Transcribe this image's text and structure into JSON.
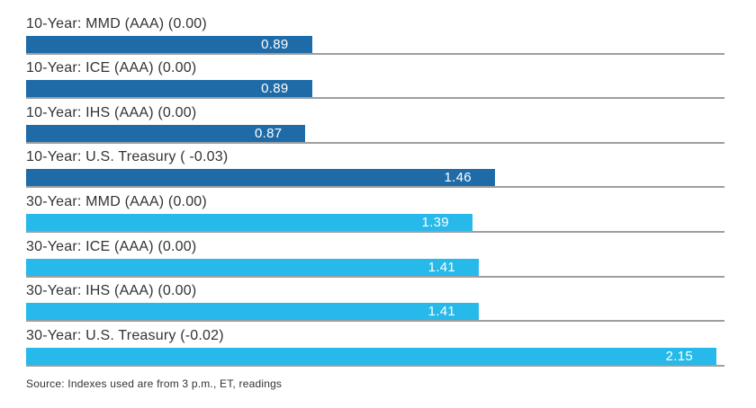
{
  "chart_data": {
    "type": "bar",
    "orientation": "horizontal",
    "title": "",
    "xlabel": "",
    "ylabel": "",
    "xlim": [
      0,
      2.175
    ],
    "grid": "row-separator-lines",
    "legend": "none",
    "value_label_position": "inside-end",
    "categories": [
      "10-Year: MMD (AAA) (0.00)",
      "10-Year: ICE (AAA) (0.00)",
      "10-Year: IHS (AAA) (0.00)",
      "10-Year: U.S. Treasury ( -0.03)",
      "30-Year: MMD (AAA) (0.00)",
      "30-Year: ICE (AAA) (0.00)",
      "30-Year: IHS (AAA) (0.00)",
      "30-Year: U.S. Treasury (-0.02)"
    ],
    "values": [
      0.89,
      0.89,
      0.87,
      1.46,
      1.39,
      1.41,
      1.41,
      2.15
    ],
    "value_labels": [
      "0.89",
      "0.89",
      "0.87",
      "1.46",
      "1.39",
      "1.41",
      "1.41",
      "2.15"
    ],
    "groups": [
      "10-year",
      "10-year",
      "10-year",
      "10-year",
      "30-year",
      "30-year",
      "30-year",
      "30-year"
    ],
    "source_note": "Source: Indexes used are from 3 p.m., ET, readings"
  },
  "colors": {
    "ten_year_bar": "#1f6ba8",
    "thirty_year_bar": "#27b9e9",
    "separator": "#9e9e9e",
    "label_text": "#333333",
    "value_text": "#ffffff",
    "background": "#ffffff"
  }
}
